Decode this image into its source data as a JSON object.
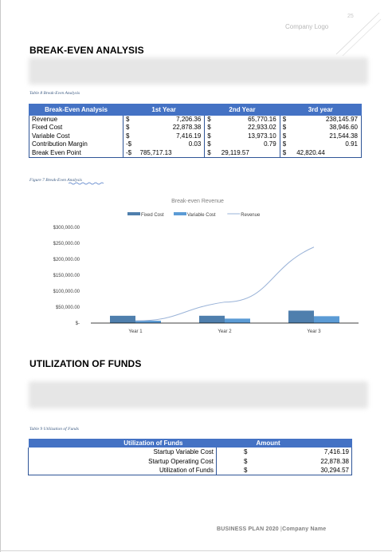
{
  "header": {
    "page_number": "25",
    "company_logo": "Company Logo"
  },
  "break_even": {
    "heading": "BREAK-EVEN ANALYSIS",
    "table_caption": "Table 8 Break-Even Analysis",
    "columns": [
      "Break-Even Analysis",
      "1st Year",
      "2nd Year",
      "3rd year"
    ],
    "rows": [
      {
        "label": "Revenue",
        "y1_cur": "$",
        "y1": "7,206.36",
        "y2_cur": "$",
        "y2": "65,770.16",
        "y3_cur": "$",
        "y3": "238,145.97"
      },
      {
        "label": "Fixed Cost",
        "y1_cur": "$",
        "y1": "22,878.38",
        "y2_cur": "$",
        "y2": "22,933.02",
        "y3_cur": "$",
        "y3": "38,946.60"
      },
      {
        "label": "Variable Cost",
        "y1_cur": "$",
        "y1": "7,416.19",
        "y2_cur": "$",
        "y2": "13,973.10",
        "y3_cur": "$",
        "y3": "21,544.38"
      },
      {
        "label": "Contribution Margin",
        "y1_cur": "-$",
        "y1": "0.03",
        "y2_cur": "$",
        "y2": "0.79",
        "y3_cur": "$",
        "y3": "0.91"
      },
      {
        "label": "Break Even Point",
        "y1_cur": "-$",
        "y1": "785,717.13",
        "y2_cur": "$",
        "y2": "29,119.57",
        "y3_cur": "$",
        "y3": "42,820.44"
      }
    ],
    "figure_caption": "Figure 7 Break-Even Analysis"
  },
  "chart_data": {
    "type": "bar",
    "title": "Break-even Revenue",
    "categories": [
      "Year 1",
      "Year 2",
      "Year 3"
    ],
    "series": [
      {
        "name": "Fixed Cost",
        "kind": "bar",
        "color": "#4f7fad",
        "values": [
          22878.38,
          22933.02,
          38946.6
        ]
      },
      {
        "name": "Variable Cost",
        "kind": "bar",
        "color": "#5b9bd5",
        "values": [
          7416.19,
          13973.1,
          21544.38
        ]
      },
      {
        "name": "Revenue",
        "kind": "line",
        "color": "#9ab3d8",
        "values": [
          7206.36,
          65770.16,
          238145.97
        ]
      }
    ],
    "ylim": [
      0,
      300000
    ],
    "yticks": [
      {
        "value": 0,
        "label": "$-"
      },
      {
        "value": 50000,
        "label": "$50,000.00"
      },
      {
        "value": 100000,
        "label": "$100,000.00"
      },
      {
        "value": 150000,
        "label": "$150,000.00"
      },
      {
        "value": 200000,
        "label": "$200,000.00"
      },
      {
        "value": 250000,
        "label": "$250,000.00"
      },
      {
        "value": 300000,
        "label": "$300,000.00"
      }
    ],
    "legend": "top",
    "grid": false
  },
  "utilization": {
    "heading": "UTILIZATION OF FUNDS",
    "table_caption": "Table 9 Utilization of Funds",
    "columns": [
      "Utilization of Funds",
      "Amount"
    ],
    "rows": [
      {
        "label": "Startup Variable Cost",
        "cur": "$",
        "amount": "7,416.19"
      },
      {
        "label": "Startup Operating Cost",
        "cur": "$",
        "amount": "22,878.38"
      },
      {
        "label": "Utilization of Funds",
        "cur": "$",
        "amount": "30,294.57"
      }
    ]
  },
  "footer": {
    "plan": "BUSINESS PLAN  2020",
    "separator": " |",
    "company": "Company Name"
  }
}
